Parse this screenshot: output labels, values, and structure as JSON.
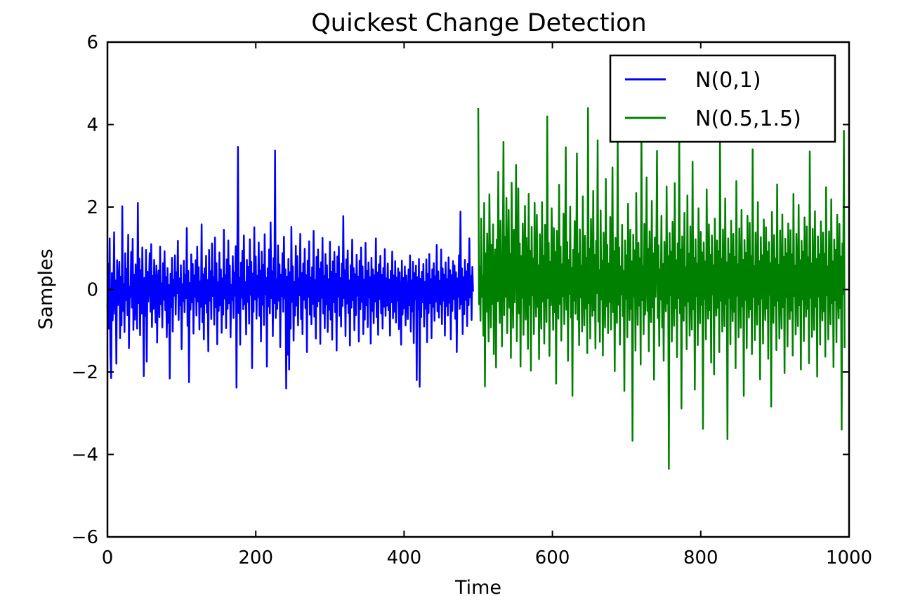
{
  "chart_data": {
    "type": "line",
    "title": "Quickest Change Detection",
    "xlabel": "Time",
    "ylabel": "Samples",
    "xlim": [
      0,
      1000
    ],
    "ylim": [
      -6,
      6
    ],
    "x_ticks": [
      "0",
      "200",
      "400",
      "600",
      "800",
      "1000"
    ],
    "y_ticks": [
      "6",
      "4",
      "2",
      "0",
      "−2",
      "−4",
      "−6"
    ],
    "grid": false,
    "legend_position": "top-right",
    "series": [
      {
        "name": "N(0,1)",
        "color": "#0000ff",
        "x_start": 0,
        "values": [
          -0.46,
          0.62,
          -0.95,
          1.24,
          -1.6,
          -2.15,
          0.4,
          -0.75,
          -0.11,
          1.39,
          -0.59,
          0.22,
          -1.8,
          0.71,
          -0.38,
          0.04,
          0.67,
          -1.18,
          0.31,
          -0.87,
          2.02,
          -0.52,
          0.13,
          -1.03,
          0.88,
          -0.26,
          0.5,
          -0.62,
          1.33,
          -1.42,
          0.07,
          -0.19,
          0.91,
          -0.44,
          1.23,
          -0.98,
          0.36,
          -0.73,
          0.61,
          -0.17,
          -0.95,
          2.1,
          -0.33,
          0.75,
          -1.11,
          0.47,
          -0.58,
          1.02,
          -0.23,
          -2.1,
          0.28,
          -0.64,
          0.96,
          -1.75,
          0.43,
          -0.29,
          0.19,
          0.88,
          -0.54,
          1.1,
          -0.91,
          0.33,
          -0.47,
          0.72,
          -0.12,
          -0.8,
          0.58,
          -1.29,
          0.21,
          0.46,
          -0.67,
          1.04,
          -0.36,
          0.15,
          -0.92,
          0.64,
          -0.25,
          0.93,
          -0.5,
          0.3,
          -1.16,
          0.52,
          -0.81,
          0.11,
          -2.16,
          0.38,
          -0.43,
          0.77,
          -1.02,
          0.24,
          -0.15,
          0.83,
          -0.61,
          0.42,
          -0.09,
          1.18,
          -0.74,
          0.27,
          -0.38,
          0.59,
          -1.45,
          0.13,
          -0.28,
          0.7,
          -0.55,
          0.36,
          -0.21,
          1.49,
          -0.88,
          0.45,
          -2.25,
          0.16,
          -0.49,
          0.85,
          -0.31,
          0.62,
          -1.07,
          0.34,
          -0.18,
          0.71,
          -0.63,
          1.04,
          -0.29,
          0.54,
          -0.97,
          0.2,
          -0.42,
          1.58,
          -0.79,
          0.37,
          -1.21,
          0.51,
          -0.34,
          0.82,
          -0.56,
          0.23,
          -1.5,
          0.96,
          -0.27,
          0.44,
          -0.72,
          1.12,
          -0.16,
          0.3,
          -0.85,
          1.26,
          -0.43,
          0.64,
          -1.33,
          0.18,
          -0.52,
          0.9,
          -0.38,
          0.49,
          -1.05,
          0.27,
          -0.61,
          1.45,
          -0.22,
          0.35,
          -0.94,
          0.73,
          -0.47,
          1.19,
          -0.33,
          0.58,
          -1.16,
          0.11,
          -0.26,
          0.81,
          -0.69,
          0.41,
          -0.15,
          1.05,
          -2.38,
          0.52,
          3.46,
          -0.57,
          0.29,
          -1.34,
          0.65,
          -0.2,
          0.94,
          -0.48,
          1.31,
          -0.36,
          0.18,
          -1.09,
          0.72,
          -0.3,
          0.55,
          -0.83,
          1.22,
          -0.13,
          0.67,
          -1.91,
          0.39,
          -0.54,
          1.51,
          -0.24,
          0.8,
          -0.71,
          0.33,
          -0.19,
          1.14,
          -0.64,
          0.46,
          -1.26,
          0.92,
          -0.37,
          0.6,
          -0.86,
          1.34,
          -0.12,
          0.28,
          -1.87,
          0.51,
          -0.41,
          0.97,
          -0.58,
          1.63,
          -0.21,
          0.44,
          -1.13,
          0.76,
          -0.33,
          3.37,
          -0.69,
          0.25,
          -0.47,
          1.07,
          -0.27,
          0.61,
          -1.4,
          0.36,
          -0.16,
          0.88,
          -0.54,
          1.28,
          -0.22,
          0.49,
          -2.4,
          0.31,
          -1.58,
          0.74,
          -1.94,
          0.42,
          -0.95,
          1.52,
          -0.3,
          0.56,
          -1.24,
          0.19,
          -0.63,
          1.06,
          -0.39,
          0.81,
          -0.87,
          0.27,
          -0.14,
          1.35,
          -0.72,
          0.4,
          -1.08,
          0.63,
          -0.25,
          0.99,
          -0.45,
          0.35,
          -1.52,
          0.7,
          -0.18,
          1.17,
          -0.61,
          0.29,
          -0.84,
          0.54,
          -0.35,
          1.42,
          -0.66,
          0.23,
          -1.19,
          0.79,
          -0.41,
          0.97,
          -0.28,
          0.5,
          -1.32,
          0.66,
          -0.2,
          1.25,
          -0.58,
          0.33,
          -0.94,
          0.86,
          -0.36,
          0.59,
          -1.03,
          0.25,
          -0.49,
          1.16,
          -0.73,
          0.43,
          -1.22,
          0.68,
          -0.31,
          0.91,
          -0.55,
          0.38,
          -1.48,
          0.8,
          -0.17,
          1.04,
          -0.64,
          0.28,
          -0.9,
          0.63,
          -0.4,
          1.78,
          -0.21,
          0.47,
          -1.13,
          0.73,
          -0.34,
          0.95,
          -0.57,
          0.22,
          -1.36,
          0.59,
          -0.44,
          1.21,
          -0.26,
          0.52,
          -0.99,
          0.37,
          -0.62,
          0.84,
          -0.15,
          0.31,
          -1.26,
          0.7,
          -0.48,
          1.02,
          -0.3,
          0.56,
          -1.08,
          0.24,
          -0.73,
          1.13,
          -0.38,
          0.45,
          -0.91,
          0.66,
          -0.19,
          0.3,
          -1.31,
          0.77,
          -0.52,
          0.49,
          -0.82,
          0.34,
          -0.29,
          1.24,
          -0.67,
          0.41,
          -1.1,
          0.61,
          -0.23,
          0.82,
          -0.58,
          0.36,
          -0.95,
          0.52,
          -0.42,
          0.98,
          -0.64,
          0.27,
          -0.39,
          0.63,
          -0.5,
          0.24,
          -1.12,
          0.45,
          -0.31,
          0.92,
          -0.7,
          0.34,
          -0.54,
          0.69,
          -0.8,
          0.29,
          -0.27,
          0.51,
          -0.96,
          0.42,
          -0.33,
          -1.34,
          0.7,
          -0.61,
          0.28,
          -0.45,
          0.56,
          -0.87,
          0.34,
          -0.2,
          -0.72,
          0.49,
          -0.38,
          0.83,
          -1.02,
          0.22,
          -0.53,
          0.67,
          -1.3,
          0.4,
          -0.24,
          0.58,
          -2.2,
          0.3,
          -0.48,
          0.74,
          -2.36,
          0.26,
          -0.67,
          0.43,
          -0.31,
          0.62,
          -0.9,
          0.19,
          -0.46,
          0.73,
          -1.28,
          0.38,
          -0.57,
          0.86,
          -0.33,
          0.25,
          -1.18,
          0.49,
          -0.42,
          0.64,
          -0.76,
          0.32,
          -0.29,
          1.08,
          -0.53,
          0.44,
          -0.68,
          0.21,
          -0.36,
          0.97,
          -0.84,
          0.51,
          -0.27,
          0.36,
          -1.12,
          0.66,
          -0.4,
          0.25,
          -0.63,
          0.78,
          -0.32,
          0.47,
          -1.21,
          0.35,
          -0.52,
          0.69,
          -0.23,
          0.58,
          -0.71,
          0.42,
          -1.52,
          0.27,
          -0.18,
          0.83,
          -0.47,
          1.89,
          -0.36,
          0.51,
          -1.08,
          0.3,
          -0.6,
          0.72,
          -0.25,
          0.44,
          -0.89,
          0.62,
          -0.38,
          1.24,
          -0.19,
          0.33,
          -0.74,
          0.55,
          -0.05
        ]
      },
      {
        "name": "N(0.5,1.5)",
        "color": "#008000",
        "x_start": 500,
        "values": [
          4.4,
          -0.36,
          0.55,
          -0.76,
          1.72,
          -0.18,
          0.34,
          -1.12,
          2.1,
          -2.35,
          0.88,
          -0.54,
          1.36,
          0.2,
          -1.26,
          2.31,
          0.65,
          -0.92,
          1.08,
          -0.35,
          1.58,
          -1.57,
          0.43,
          0.97,
          -1.89,
          1.21,
          -0.28,
          2.85,
          0.1,
          -0.81,
          1.67,
          0.39,
          -1.38,
          0.78,
          3.58,
          -0.62,
          1.28,
          -0.17,
          2.22,
          -1.06,
          0.51,
          1.93,
          -0.44,
          0.86,
          -1.66,
          2.59,
          0.24,
          -0.93,
          1.45,
          -0.31,
          0.68,
          3.02,
          -1.25,
          0.3,
          2.45,
          -0.58,
          1.12,
          -1.87,
          0.81,
          -0.2,
          1.6,
          -1.1,
          0.44,
          2.03,
          -0.73,
          1.25,
          0.09,
          -1.44,
          2.32,
          -0.37,
          0.94,
          -1.97,
          1.52,
          -0.14,
          0.75,
          -1.08,
          2.1,
          0.36,
          -0.66,
          1.81,
          -0.42,
          0.59,
          -1.69,
          1.34,
          0.13,
          -0.95,
          2.12,
          -0.29,
          0.82,
          -1.31,
          1.57,
          0.48,
          -0.79,
          4.2,
          -0.21,
          1.13,
          -1.61,
          0.67,
          -0.38,
          1.97,
          0.27,
          -0.98,
          1.49,
          -0.55,
          0.91,
          -2.28,
          1.42,
          0.06,
          -0.71,
          2.54,
          -0.35,
          1.04,
          -1.24,
          0.61,
          -0.16,
          1.84,
          -0.84,
          0.4,
          3.45,
          -0.49,
          1.15,
          -1.73,
          0.72,
          -0.11,
          2.01,
          -0.68,
          0.53,
          -2.58,
          0.96,
          -0.27,
          1.66,
          -0.59,
          0.32,
          3.3,
          -0.73,
          0.87,
          -1.35,
          1.46,
          -0.19,
          0.58,
          -1.02,
          2.26,
          0.14,
          -0.87,
          1.3,
          -0.46,
          0.77,
          -1.54,
          4.4,
          -0.33,
          0.99,
          -1.19,
          1.71,
          0.23,
          -0.64,
          2.39,
          -0.5,
          0.84,
          -1.43,
          1.18,
          -0.09,
          3.62,
          -0.78,
          0.47,
          -1.27,
          1.92,
          -0.24,
          0.7,
          -1.6,
          1.38,
          0.15,
          -0.92,
          2.68,
          -0.41,
          1.08,
          -1.06,
          0.63,
          -0.3,
          1.76,
          -0.97,
          0.38,
          2.96,
          -0.55,
          0.93,
          -1.98,
          1.25,
          0.04,
          -0.81,
          3.7,
          -0.37,
          1.02,
          -1.34,
          0.56,
          -0.12,
          1.57,
          -0.65,
          0.45,
          -2.46,
          1.19,
          -0.22,
          0.83,
          -1.16,
          2.08,
          0.11,
          -0.74,
          1.45,
          -0.47,
          0.68,
          -3.67,
          1.33,
          -0.17,
          0.95,
          -1.48,
          2.34,
          0.29,
          -0.86,
          1.13,
          -0.39,
          0.76,
          -1.82,
          3.98,
          -0.26,
          0.58,
          -1.08,
          1.59,
          -0.61,
          0.35,
          2.72,
          -0.52,
          0.99,
          -1.5,
          1.41,
          0.07,
          -0.79,
          2.15,
          -0.43,
          0.88,
          -2.19,
          1.26,
          -0.18,
          0.64,
          3.36,
          -0.69,
          1.07,
          -1.37,
          0.49,
          -0.24,
          1.79,
          -0.92,
          0.62,
          -1.73,
          1.16,
          0.19,
          -0.53,
          2.5,
          -0.34,
          0.81,
          -4.35,
          1.37,
          -0.14,
          0.92,
          -1.26,
          1.64,
          0.25,
          -0.88,
          2.58,
          -0.45,
          0.71,
          -1.64,
          1.12,
          -0.21,
          3.82,
          -0.58,
          0.97,
          -2.89,
          1.29,
          0.13,
          -0.76,
          1.86,
          -0.39,
          0.54,
          -1.45,
          2.28,
          -0.29,
          0.87,
          -1.12,
          1.53,
          0.05,
          -0.97,
          3.1,
          -0.48,
          0.77,
          -2.43,
          1.22,
          -0.16,
          0.63,
          -1.35,
          1.97,
          0.21,
          -0.82,
          1.4,
          -0.37,
          0.9,
          -3.38,
          1.14,
          -0.23,
          0.68,
          -1.21,
          2.43,
          0.17,
          -0.71,
          1.58,
          -0.5,
          0.84,
          -1.77,
          1.31,
          -0.12,
          0.59,
          -2.06,
          1.72,
          0.31,
          -0.63,
          1.19,
          -0.44,
          0.93,
          -1.52,
          3.65,
          -0.27,
          0.74,
          -1.02,
          1.46,
          0.09,
          -0.89,
          2.21,
          -0.35,
          0.66,
          -3.63,
          1.24,
          -0.2,
          0.86,
          -1.33,
          1.67,
          0.24,
          -0.77,
          1.35,
          -0.54,
          0.79,
          -1.91,
          2.63,
          -0.15,
          0.61,
          -1.16,
          1.48,
          0.12,
          -0.93,
          1.93,
          -0.41,
          0.72,
          -2.58,
          1.2,
          -0.25,
          0.89,
          -1.42,
          1.79,
          0.28,
          -0.68,
          1.62,
          -0.48,
          0.81,
          -1.57,
          3.4,
          -0.18,
          0.57,
          -1.23,
          1.38,
          0.15,
          -0.85,
          2.12,
          -0.36,
          0.69,
          -2.18,
          1.27,
          -0.22,
          0.83,
          -1.31,
          1.7,
          0.19,
          -0.74,
          1.51,
          -0.46,
          0.92,
          -1.68,
          1.15,
          -0.13,
          0.64,
          -2.84,
          1.88,
          0.26,
          -0.81,
          1.32,
          -0.39,
          0.75,
          -1.47,
          2.55,
          -0.27,
          0.6,
          -1.19,
          1.43,
          0.1,
          -0.95,
          1.82,
          -0.43,
          0.79,
          -2.03,
          1.23,
          -0.19,
          0.88,
          -1.38,
          1.6,
          0.22,
          -0.72,
          1.44,
          -0.51,
          0.85,
          -1.6,
          2.32,
          -0.16,
          0.58,
          -1.09,
          1.35,
          0.14,
          -0.89,
          2.05,
          -0.38,
          0.71,
          -1.94,
          1.18,
          -0.24,
          0.92,
          -1.25,
          1.75,
          0.3,
          -0.66,
          1.53,
          -0.47,
          0.78,
          -1.79,
          3.35,
          -0.2,
          0.63,
          -1.15,
          1.47,
          0.07,
          -0.98,
          1.9,
          -0.42,
          0.74,
          -2.11,
          1.29,
          -0.17,
          0.85,
          -1.34,
          1.65,
          0.27,
          -0.75,
          1.38,
          -0.53,
          0.87,
          -1.63,
          2.48,
          -0.14,
          0.56,
          -1.21,
          1.41,
          0.18,
          -0.84,
          2.19,
          -0.33,
          0.68,
          -1.88,
          1.21,
          -0.26,
          0.96,
          -1.28,
          1.81,
          0.23,
          -0.7,
          1.59,
          -0.45,
          0.8,
          -3.4,
          1.12,
          -0.11,
          3.85,
          -1.42
        ]
      }
    ]
  }
}
